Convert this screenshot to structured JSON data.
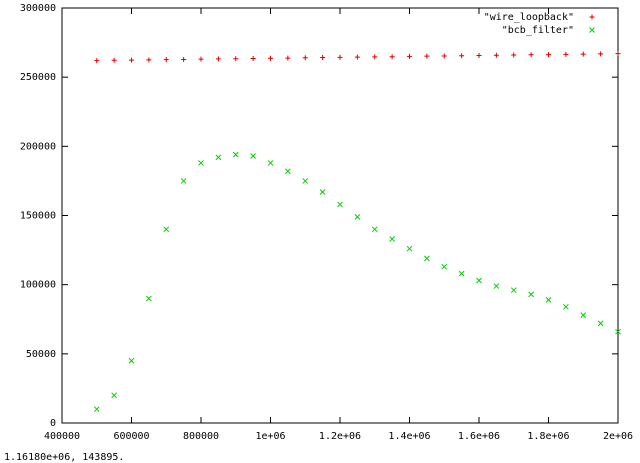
{
  "chart_data": {
    "type": "scatter",
    "x": [
      500000,
      550000,
      600000,
      650000,
      700000,
      750000,
      800000,
      850000,
      900000,
      950000,
      1000000,
      1050000,
      1100000,
      1150000,
      1200000,
      1250000,
      1300000,
      1350000,
      1400000,
      1450000,
      1500000,
      1550000,
      1600000,
      1650000,
      1700000,
      1750000,
      1800000,
      1850000,
      1900000,
      1950000,
      2000000
    ],
    "series": [
      {
        "name": "\"wire_loopback\"",
        "color": "#e00000",
        "marker": "+",
        "values": [
          262000,
          262200,
          262300,
          262500,
          262700,
          262800,
          263000,
          263200,
          263300,
          263500,
          263700,
          263800,
          264000,
          264200,
          264300,
          264500,
          264700,
          264800,
          265000,
          265200,
          265300,
          265500,
          265700,
          265800,
          266000,
          266200,
          266300,
          266500,
          266700,
          266800,
          267000
        ]
      },
      {
        "name": "\"bcb_filter\"",
        "color": "#00d000",
        "marker": "x",
        "values": [
          10000,
          20000,
          45000,
          90000,
          140000,
          175000,
          188000,
          192000,
          194000,
          193000,
          188000,
          182000,
          175000,
          167000,
          158000,
          149000,
          140000,
          133000,
          126000,
          119000,
          113000,
          108000,
          103000,
          99000,
          96000,
          93000,
          89000,
          84000,
          78000,
          72000,
          66000
        ]
      }
    ],
    "xlim": [
      400000,
      2000000
    ],
    "xticks": [
      400000,
      600000,
      800000,
      {
        "value": 1000000,
        "label": "1e+06"
      },
      {
        "value": 1200000,
        "label": "1.2e+06"
      },
      {
        "value": 1400000,
        "label": "1.4e+06"
      },
      {
        "value": 1600000,
        "label": "1.6e+06"
      },
      {
        "value": 1800000,
        "label": "1.8e+06"
      },
      {
        "value": 2000000,
        "label": "2e+06"
      }
    ],
    "ylim": [
      0,
      300000
    ],
    "yticks": [
      0,
      50000,
      100000,
      150000,
      200000,
      250000,
      300000
    ],
    "legend": "top-right",
    "status_text": "1.16180e+06,  143895."
  }
}
